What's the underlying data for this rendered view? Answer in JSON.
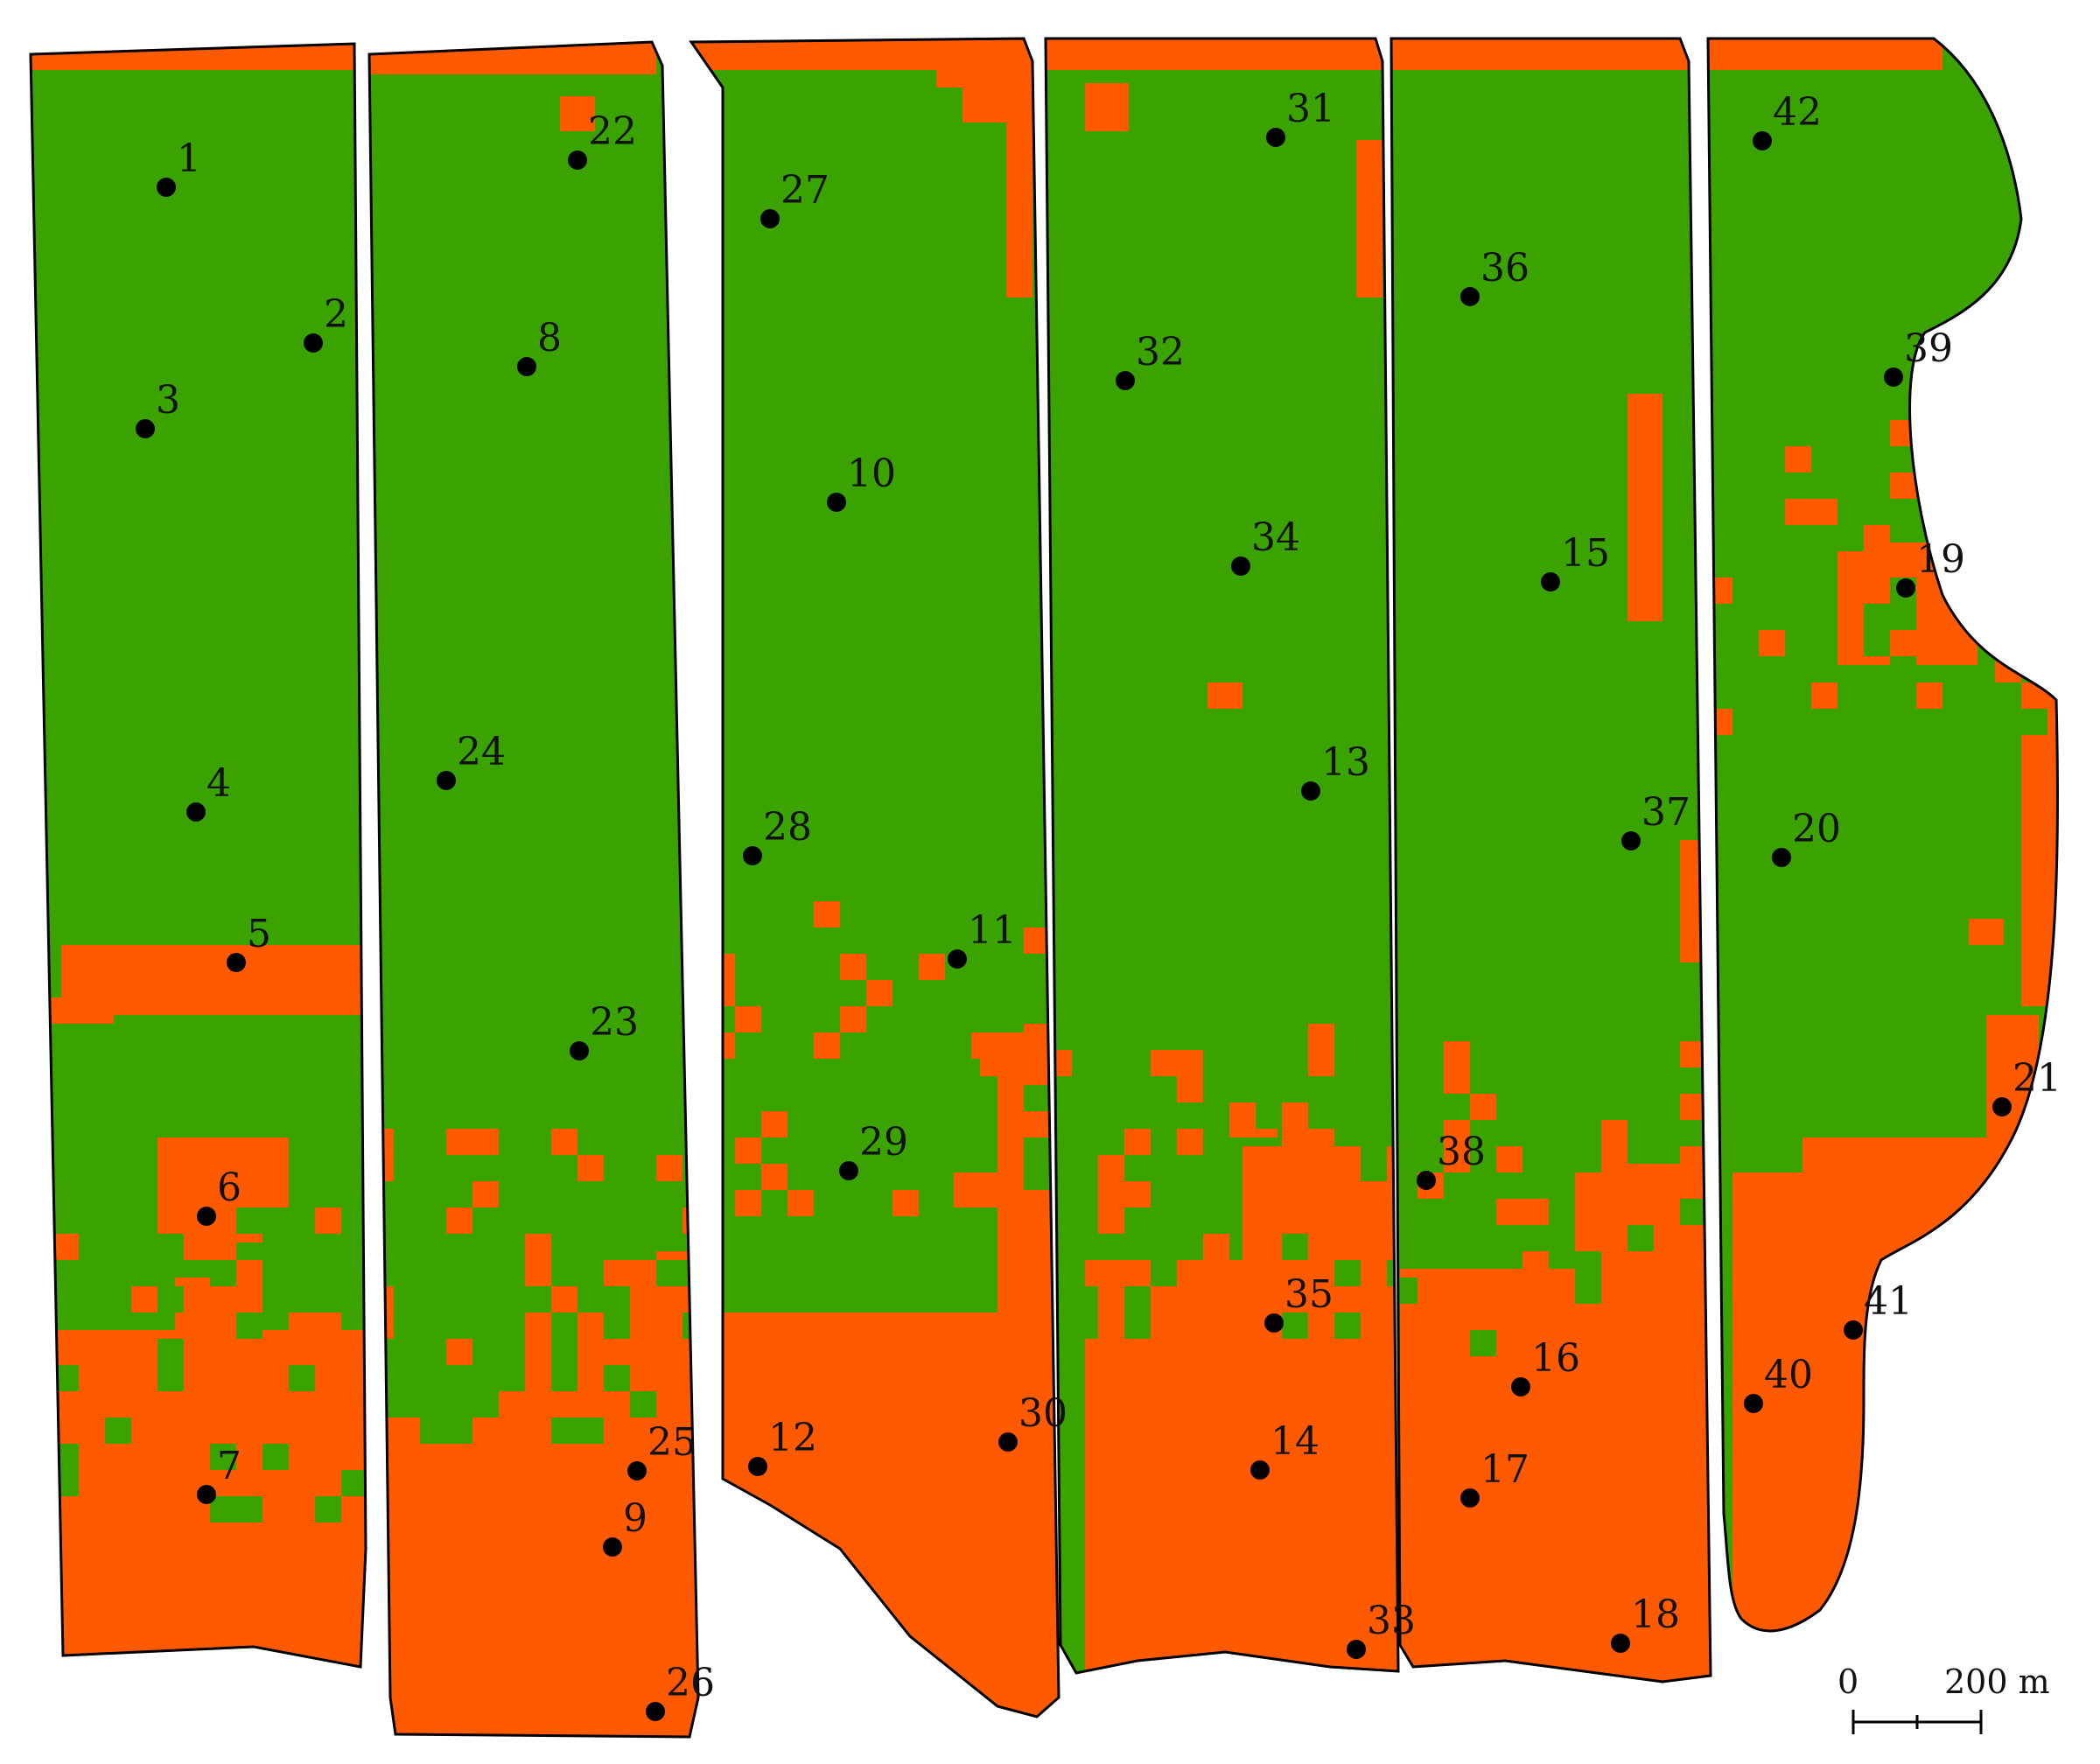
{
  "colors": {
    "zone_high": "#3aa300",
    "zone_low": "#ff5a00",
    "outline": "#000000",
    "point": "#000000"
  },
  "sample_points": [
    {
      "id": "1"
    },
    {
      "id": "2"
    },
    {
      "id": "3"
    },
    {
      "id": "4"
    },
    {
      "id": "5"
    },
    {
      "id": "6"
    },
    {
      "id": "7"
    },
    {
      "id": "8"
    },
    {
      "id": "9"
    },
    {
      "id": "10"
    },
    {
      "id": "11"
    },
    {
      "id": "12"
    },
    {
      "id": "13"
    },
    {
      "id": "14"
    },
    {
      "id": "15"
    },
    {
      "id": "16"
    },
    {
      "id": "17"
    },
    {
      "id": "18"
    },
    {
      "id": "19"
    },
    {
      "id": "20"
    },
    {
      "id": "21"
    },
    {
      "id": "22"
    },
    {
      "id": "23"
    },
    {
      "id": "24"
    },
    {
      "id": "25"
    },
    {
      "id": "26"
    },
    {
      "id": "27"
    },
    {
      "id": "28"
    },
    {
      "id": "29"
    },
    {
      "id": "30"
    },
    {
      "id": "31"
    },
    {
      "id": "32"
    },
    {
      "id": "33"
    },
    {
      "id": "34"
    },
    {
      "id": "35"
    },
    {
      "id": "36"
    },
    {
      "id": "37"
    },
    {
      "id": "38"
    },
    {
      "id": "39"
    },
    {
      "id": "40"
    },
    {
      "id": "41"
    },
    {
      "id": "42"
    }
  ],
  "scale_bar": {
    "start_label": "0",
    "end_label": "200 m"
  }
}
